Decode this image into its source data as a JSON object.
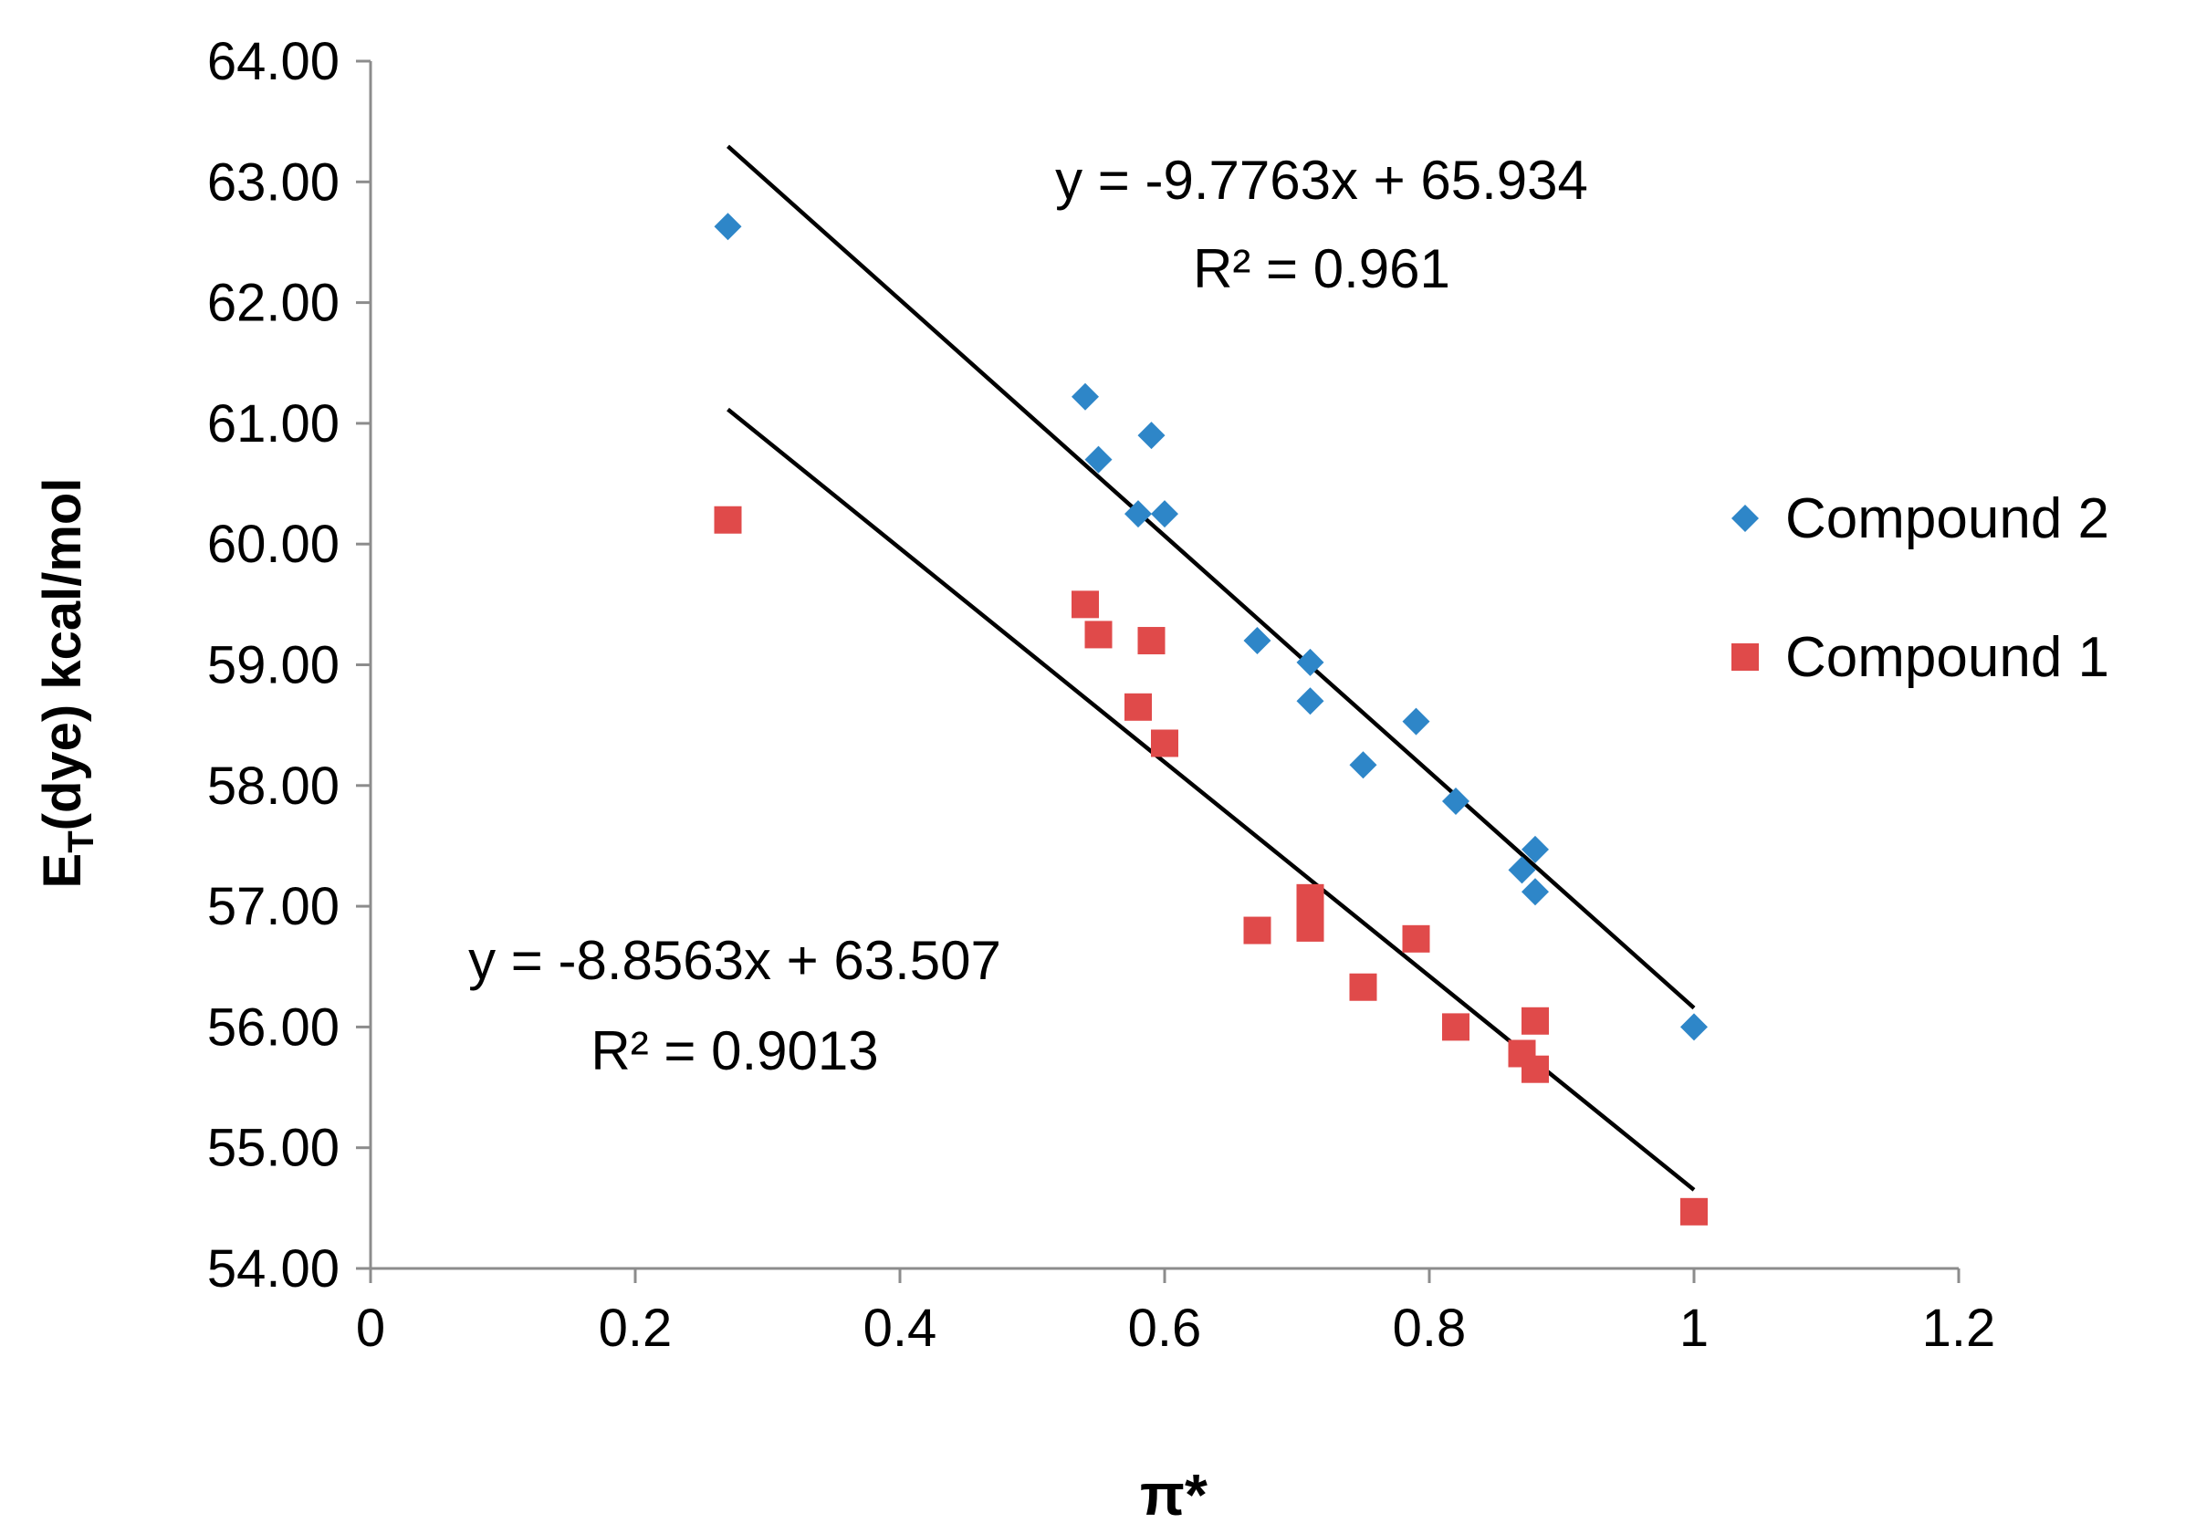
{
  "chart_data": {
    "type": "scatter",
    "title": "",
    "xlabel": "π*",
    "ylabel": {
      "main": "E",
      "sub": "T",
      "rest": "(dye) kcal/mol"
    },
    "xlim": [
      0,
      1.2
    ],
    "ylim": [
      54.0,
      64.0
    ],
    "x_ticks": [
      0,
      0.2,
      0.4,
      0.6,
      0.8,
      1,
      1.2
    ],
    "x_tick_labels": [
      "0",
      "0.2",
      "0.4",
      "0.6",
      "0.8",
      "1",
      "1.2"
    ],
    "y_ticks": [
      54,
      55,
      56,
      57,
      58,
      59,
      60,
      61,
      62,
      63,
      64
    ],
    "y_tick_labels": [
      "54.00",
      "55.00",
      "56.00",
      "57.00",
      "58.00",
      "59.00",
      "60.00",
      "61.00",
      "62.00",
      "63.00",
      "64.00"
    ],
    "grid": false,
    "legend_position": "right",
    "series": [
      {
        "name": "Compound 2",
        "marker": "diamond",
        "color": "#2E86C8",
        "points": [
          [
            0.27,
            62.63
          ],
          [
            0.54,
            61.22
          ],
          [
            0.55,
            60.7
          ],
          [
            0.59,
            60.9
          ],
          [
            0.58,
            60.25
          ],
          [
            0.6,
            60.25
          ],
          [
            0.67,
            59.2
          ],
          [
            0.71,
            59.02
          ],
          [
            0.71,
            58.7
          ],
          [
            0.75,
            58.17
          ],
          [
            0.79,
            58.53
          ],
          [
            0.82,
            57.87
          ],
          [
            0.88,
            57.47
          ],
          [
            0.87,
            57.3
          ],
          [
            0.88,
            57.12
          ],
          [
            1.0,
            56.0
          ]
        ],
        "trendline": {
          "slope": -9.7763,
          "intercept": 65.934,
          "x_range": [
            0.27,
            1.0
          ],
          "equation": "y = -9.7763x + 65.934",
          "r2": "R² = 0.961",
          "label_anchor": "top-center"
        }
      },
      {
        "name": "Compound 1",
        "marker": "square",
        "color": "#E04A4A",
        "points": [
          [
            0.27,
            60.2
          ],
          [
            0.54,
            59.5
          ],
          [
            0.55,
            59.25
          ],
          [
            0.59,
            59.2
          ],
          [
            0.58,
            58.65
          ],
          [
            0.6,
            58.35
          ],
          [
            0.67,
            56.8
          ],
          [
            0.71,
            57.07
          ],
          [
            0.71,
            56.97
          ],
          [
            0.71,
            56.82
          ],
          [
            0.79,
            56.73
          ],
          [
            0.75,
            56.33
          ],
          [
            0.82,
            56.0
          ],
          [
            0.88,
            56.05
          ],
          [
            0.87,
            55.78
          ],
          [
            0.88,
            55.65
          ],
          [
            1.0,
            54.47
          ]
        ],
        "trendline": {
          "slope": -8.8563,
          "intercept": 63.507,
          "x_range": [
            0.27,
            1.0
          ],
          "equation": "y = -8.8563x + 63.507",
          "r2": "R² = 0.9013",
          "label_anchor": "bottom-left"
        }
      }
    ]
  }
}
